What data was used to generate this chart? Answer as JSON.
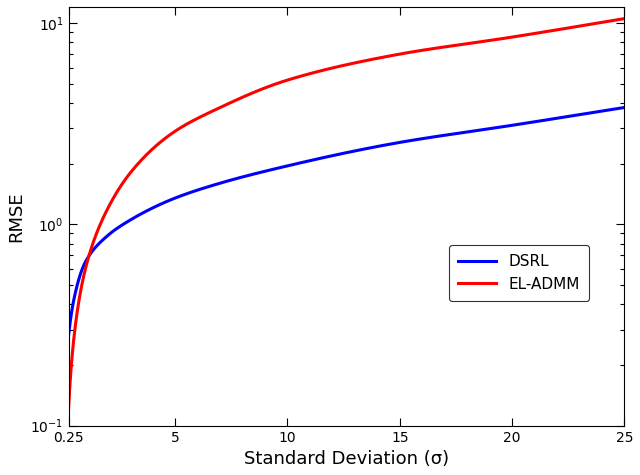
{
  "title": "",
  "xlabel": "Standard Deviation (σ)",
  "ylabel": "RMSE",
  "xlim": [
    0.25,
    25
  ],
  "ylim": [
    0.1,
    12
  ],
  "xticks": [
    0.25,
    5,
    10,
    15,
    20,
    25
  ],
  "xtick_labels": [
    "0.25",
    "5",
    "10",
    "15",
    "20",
    "25"
  ],
  "x_start": 0.25,
  "x_end": 25,
  "dsrl_color": "#0000FF",
  "eladmm_color": "#FF0000",
  "line_width": 2.2,
  "legend_labels": [
    "DSRL",
    "EL-ADMM"
  ],
  "background_color": "#ffffff",
  "dsrl_anchors_x": [
    0.25,
    0.5,
    1,
    2,
    3,
    5,
    7,
    10,
    15,
    20,
    25
  ],
  "dsrl_anchors_y": [
    0.28,
    0.43,
    0.65,
    0.88,
    1.05,
    1.35,
    1.6,
    1.95,
    2.55,
    3.1,
    3.8
  ],
  "eladmm_anchors_x": [
    0.25,
    0.5,
    1,
    2,
    3,
    5,
    7,
    10,
    15,
    20,
    25
  ],
  "eladmm_anchors_y": [
    0.12,
    0.28,
    0.6,
    1.2,
    1.8,
    2.9,
    3.8,
    5.2,
    7.0,
    8.5,
    10.5
  ]
}
